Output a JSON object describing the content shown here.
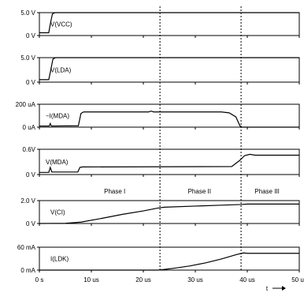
{
  "chart_data": {
    "type": "line",
    "x_unit_label": "t",
    "xlim": [
      0,
      50
    ],
    "x_ticks": [
      0,
      10,
      20,
      30,
      40,
      50
    ],
    "x_tick_labels": [
      "0 s",
      "10 us",
      "20 us",
      "30 us",
      "40 us",
      "50 us"
    ],
    "markers": [
      {
        "x": 23.2,
        "label": "Phase I"
      },
      {
        "x": 38.8,
        "label": "Phase II"
      }
    ],
    "phase_labels": [
      {
        "x": 14.5,
        "text": "Phase I"
      },
      {
        "x": 30.8,
        "text": "Phase II"
      },
      {
        "x": 43.8,
        "text": "Phase III"
      }
    ],
    "panels": [
      {
        "name": "V(VCC)",
        "ylim": [
          0,
          5
        ],
        "ticks": [
          {
            "v": 0,
            "label": "0 V"
          },
          {
            "v": 5,
            "label": "5.0 V"
          }
        ],
        "points": [
          [
            0,
            0.6
          ],
          [
            1.8,
            0.6
          ],
          [
            2.1,
            2.5
          ],
          [
            2.5,
            4.7
          ],
          [
            3,
            5
          ],
          [
            50,
            5
          ]
        ]
      },
      {
        "name": "V(LDA)",
        "ylim": [
          0,
          5
        ],
        "ticks": [
          {
            "v": 0,
            "label": "0 V"
          },
          {
            "v": 5,
            "label": "5.0 V"
          }
        ],
        "points": [
          [
            0,
            0.5
          ],
          [
            1.8,
            0.5
          ],
          [
            2.2,
            2.5
          ],
          [
            2.6,
            4.7
          ],
          [
            3.1,
            5
          ],
          [
            50,
            5
          ]
        ]
      },
      {
        "name": "−I(MDA)",
        "ylim": [
          0,
          200
        ],
        "ticks": [
          {
            "v": 0,
            "label": "0 uA"
          },
          {
            "v": 200,
            "label": "200 uA"
          }
        ],
        "points": [
          [
            0,
            10
          ],
          [
            1.9,
            10
          ],
          [
            2.1,
            32
          ],
          [
            2.3,
            10
          ],
          [
            7.5,
            12
          ],
          [
            8,
            120
          ],
          [
            8.5,
            133
          ],
          [
            21,
            133
          ],
          [
            21.5,
            140
          ],
          [
            22,
            133
          ],
          [
            35,
            133
          ],
          [
            36.5,
            125
          ],
          [
            37.8,
            90
          ],
          [
            38.6,
            10
          ],
          [
            39,
            0
          ],
          [
            50,
            0
          ]
        ]
      },
      {
        "name": "V(MDA)",
        "ylim": [
          0,
          0.6
        ],
        "ticks": [
          {
            "v": 0,
            "label": "0 V"
          },
          {
            "v": 0.6,
            "label": "0.6V"
          }
        ],
        "points": [
          [
            0,
            0.05
          ],
          [
            1.8,
            0.05
          ],
          [
            2.1,
            0.17
          ],
          [
            2.4,
            0.06
          ],
          [
            7.4,
            0.06
          ],
          [
            7.8,
            0.17
          ],
          [
            8.3,
            0.18
          ],
          [
            37,
            0.19
          ],
          [
            38.5,
            0.33
          ],
          [
            39.5,
            0.45
          ],
          [
            40.5,
            0.48
          ],
          [
            41.5,
            0.46
          ],
          [
            50,
            0.46
          ]
        ]
      },
      {
        "name": "V(CI)",
        "ylim": [
          0,
          2
        ],
        "ticks": [
          {
            "v": 0,
            "label": "0 V"
          },
          {
            "v": 2,
            "label": "2.0 V"
          }
        ],
        "points": [
          [
            0,
            0
          ],
          [
            5,
            0.02
          ],
          [
            8,
            0.12
          ],
          [
            12,
            0.45
          ],
          [
            16,
            0.8
          ],
          [
            20,
            1.1
          ],
          [
            22.8,
            1.35
          ],
          [
            24,
            1.42
          ],
          [
            30,
            1.52
          ],
          [
            35,
            1.6
          ],
          [
            38.8,
            1.66
          ],
          [
            40,
            1.7
          ],
          [
            50,
            1.7
          ]
        ]
      },
      {
        "name": "I(LDK)",
        "ylim": [
          0,
          60
        ],
        "ticks": [
          {
            "v": 0,
            "label": "0 mA"
          },
          {
            "v": 60,
            "label": "60 mA"
          }
        ],
        "points": [
          [
            0,
            0
          ],
          [
            22.8,
            0
          ],
          [
            23.3,
            0.5
          ],
          [
            26,
            5
          ],
          [
            29,
            11
          ],
          [
            32,
            19
          ],
          [
            35,
            29
          ],
          [
            38,
            41
          ],
          [
            39.3,
            45
          ],
          [
            40,
            44
          ],
          [
            50,
            44
          ]
        ]
      }
    ]
  },
  "colors": {
    "line": "#000000",
    "frame": "#000000",
    "marker": "#000000"
  }
}
